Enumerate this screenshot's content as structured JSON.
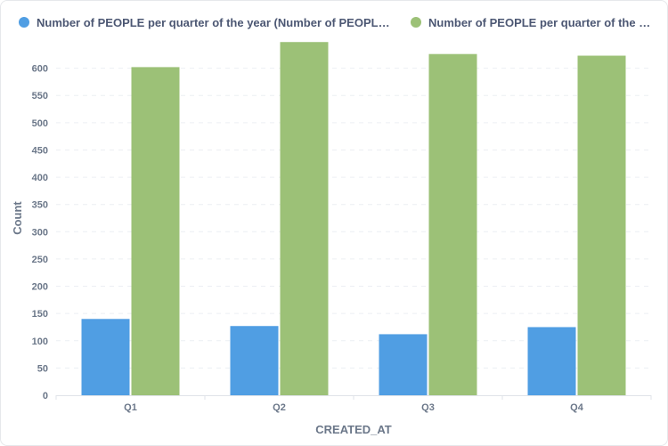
{
  "chart_data": {
    "type": "bar",
    "categories": [
      "Q1",
      "Q2",
      "Q3",
      "Q4"
    ],
    "series": [
      {
        "name": "Number of PEOPLE per quarter of the year (Number of PEOPLE w…",
        "color": "#509ee3",
        "values": [
          140,
          127,
          112,
          125
        ]
      },
      {
        "name": "Number of PEOPLE per quarter of the y…",
        "color": "#9cc177",
        "values": [
          602,
          648,
          626,
          623
        ]
      }
    ],
    "xlabel": "CREATED_AT",
    "ylabel": "Count",
    "ylim": [
      0,
      650
    ],
    "yticks": [
      0,
      50,
      100,
      150,
      200,
      250,
      300,
      350,
      400,
      450,
      500,
      550,
      600
    ],
    "grid": true,
    "legend_position": "top-left"
  }
}
